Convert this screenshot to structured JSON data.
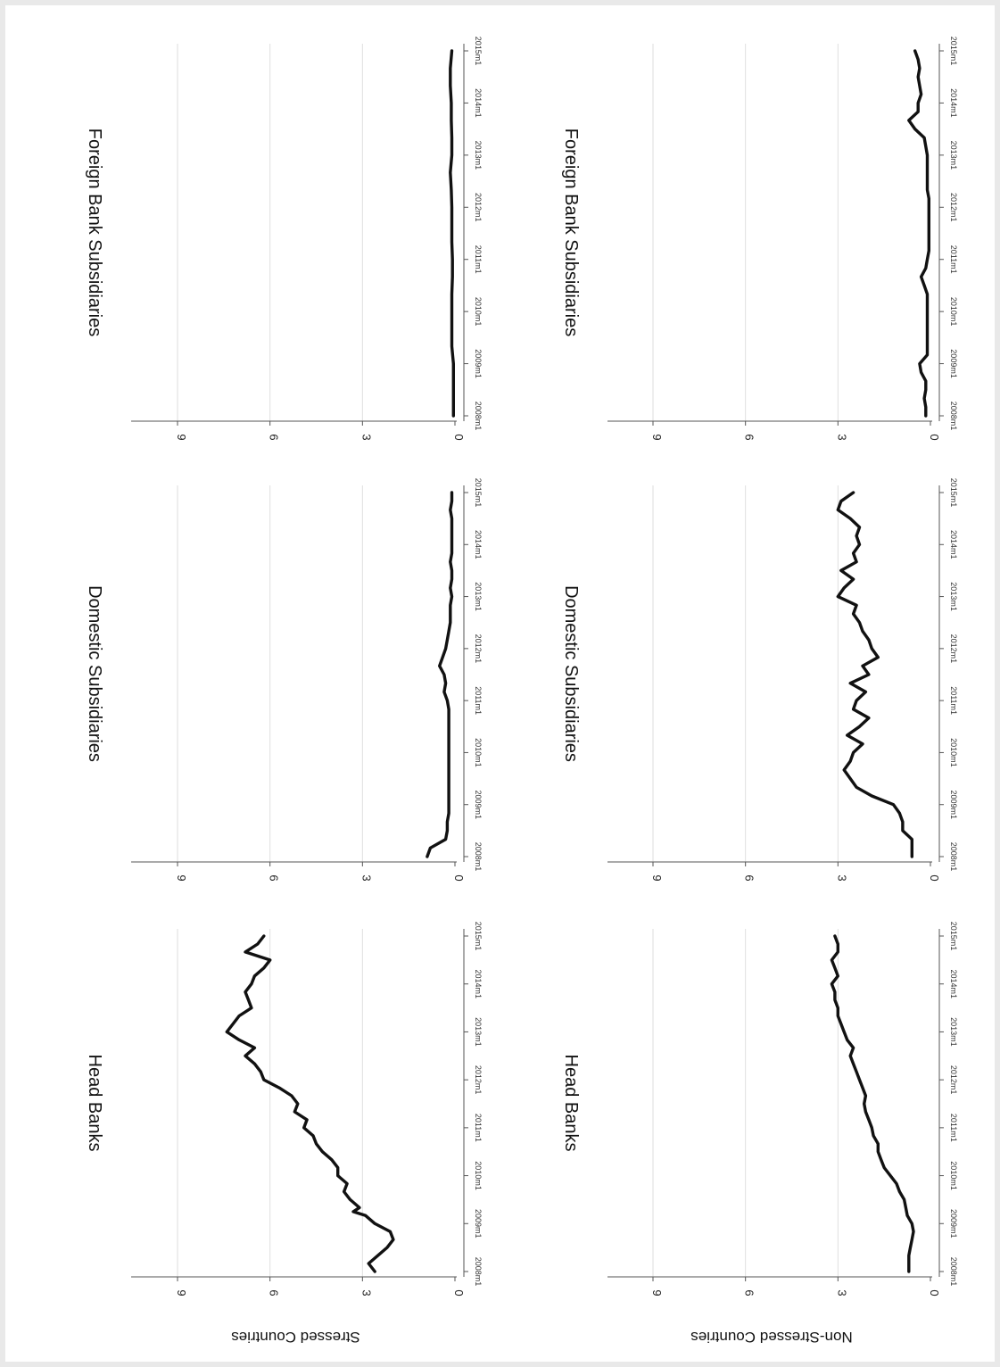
{
  "chart_data": [
    {
      "type": "line",
      "title": "Head Banks",
      "row_label": "Stressed Countries",
      "ylim": [
        0,
        7
      ],
      "yticks": [
        0,
        3,
        6,
        9
      ],
      "xticks": [
        "2008m1",
        "2009m1",
        "2010m1",
        "2011m1",
        "2012m1",
        "2013m1",
        "2014m1",
        "2015m1"
      ],
      "x_months": [
        0,
        2,
        4,
        6,
        8,
        10,
        12,
        14,
        15,
        16,
        18,
        20,
        22,
        24,
        26,
        28,
        30,
        32,
        34,
        36,
        38,
        40,
        42,
        44,
        46,
        48,
        50,
        52,
        54,
        56,
        58,
        60,
        62,
        64,
        66,
        68,
        70,
        72,
        74,
        76,
        78,
        80,
        82,
        84
      ],
      "values": [
        2.6,
        2.8,
        2.5,
        2.2,
        2.0,
        2.1,
        2.6,
        2.9,
        3.3,
        3.1,
        3.4,
        3.6,
        3.5,
        3.8,
        3.8,
        4.0,
        4.3,
        4.5,
        4.6,
        4.9,
        4.8,
        5.2,
        5.1,
        5.3,
        5.7,
        6.2,
        6.3,
        6.5,
        6.8,
        6.5,
        7.0,
        7.4,
        7.2,
        7.0,
        6.6,
        6.7,
        6.8,
        6.6,
        6.5,
        6.2,
        6.0,
        6.8,
        6.4,
        6.2
      ]
    },
    {
      "type": "line",
      "title": "Domestic Subsidiaries",
      "row_label": "",
      "ylim": [
        0,
        7
      ],
      "yticks": [
        0,
        3,
        6,
        9
      ],
      "xticks": [
        "2008m1",
        "2009m1",
        "2010m1",
        "2011m1",
        "2012m1",
        "2013m1",
        "2014m1",
        "2015m1"
      ],
      "x_months": [
        0,
        2,
        4,
        6,
        8,
        10,
        12,
        14,
        16,
        18,
        20,
        22,
        24,
        26,
        28,
        30,
        32,
        34,
        36,
        38,
        40,
        42,
        44,
        46,
        48,
        50,
        52,
        54,
        56,
        58,
        60,
        62,
        64,
        66,
        68,
        70,
        72,
        74,
        76,
        78,
        80,
        82,
        84
      ],
      "values": [
        0.9,
        0.8,
        0.3,
        0.25,
        0.25,
        0.2,
        0.2,
        0.2,
        0.2,
        0.2,
        0.2,
        0.2,
        0.2,
        0.2,
        0.2,
        0.2,
        0.2,
        0.2,
        0.25,
        0.35,
        0.3,
        0.35,
        0.5,
        0.4,
        0.3,
        0.25,
        0.2,
        0.15,
        0.15,
        0.15,
        0.1,
        0.15,
        0.1,
        0.1,
        0.15,
        0.1,
        0.1,
        0.1,
        0.1,
        0.1,
        0.15,
        0.1,
        0.1
      ]
    },
    {
      "type": "line",
      "title": "Foreign Bank Subsidiaries",
      "row_label": "",
      "ylim": [
        0,
        7
      ],
      "yticks": [
        0,
        3,
        6,
        9
      ],
      "xticks": [
        "2008m1",
        "2009m1",
        "2010m1",
        "2011m1",
        "2012m1",
        "2013m1",
        "2014m1",
        "2015m1"
      ],
      "x_months": [
        0,
        4,
        8,
        12,
        16,
        20,
        24,
        28,
        32,
        36,
        40,
        44,
        48,
        52,
        56,
        60,
        64,
        68,
        72,
        76,
        80,
        84
      ],
      "values": [
        0.05,
        0.05,
        0.05,
        0.05,
        0.1,
        0.1,
        0.1,
        0.1,
        0.08,
        0.08,
        0.1,
        0.1,
        0.1,
        0.12,
        0.15,
        0.1,
        0.1,
        0.12,
        0.12,
        0.15,
        0.15,
        0.1
      ]
    },
    {
      "type": "line",
      "title": "Head Banks",
      "row_label": "Non-Stressed Countries",
      "ylim": [
        0,
        7
      ],
      "yticks": [
        0,
        3,
        6,
        9
      ],
      "xticks": [
        "2008m1",
        "2009m1",
        "2010m1",
        "2011m1",
        "2012m1",
        "2013m1",
        "2014m1",
        "2015m1"
      ],
      "x_months": [
        0,
        2,
        4,
        6,
        8,
        10,
        12,
        14,
        16,
        18,
        20,
        22,
        24,
        26,
        28,
        30,
        32,
        34,
        36,
        38,
        40,
        42,
        44,
        46,
        48,
        50,
        52,
        54,
        56,
        58,
        60,
        62,
        64,
        66,
        68,
        70,
        72,
        74,
        76,
        78,
        80,
        82,
        84
      ],
      "values": [
        0.7,
        0.7,
        0.7,
        0.65,
        0.6,
        0.55,
        0.6,
        0.75,
        0.8,
        0.85,
        1.0,
        1.1,
        1.3,
        1.5,
        1.6,
        1.7,
        1.7,
        1.85,
        1.9,
        2.0,
        2.1,
        2.15,
        2.1,
        2.2,
        2.3,
        2.4,
        2.5,
        2.6,
        2.5,
        2.7,
        2.8,
        2.9,
        3.0,
        3.0,
        3.1,
        3.1,
        3.2,
        3.0,
        3.1,
        3.2,
        3.0,
        3.0,
        3.1
      ]
    },
    {
      "type": "line",
      "title": "Domestic Subsidiaries",
      "row_label": "",
      "ylim": [
        0,
        7
      ],
      "yticks": [
        0,
        3,
        6,
        9
      ],
      "xticks": [
        "2008m1",
        "2009m1",
        "2010m1",
        "2011m1",
        "2012m1",
        "2013m1",
        "2014m1",
        "2015m1"
      ],
      "x_months": [
        0,
        2,
        4,
        6,
        8,
        10,
        12,
        14,
        16,
        18,
        20,
        22,
        24,
        26,
        28,
        30,
        32,
        34,
        36,
        38,
        40,
        42,
        44,
        46,
        48,
        50,
        52,
        54,
        56,
        58,
        60,
        62,
        64,
        66,
        68,
        70,
        72,
        74,
        76,
        78,
        80,
        82,
        84
      ],
      "values": [
        0.6,
        0.6,
        0.6,
        0.9,
        0.9,
        1.0,
        1.2,
        1.9,
        2.4,
        2.6,
        2.8,
        2.6,
        2.5,
        2.2,
        2.7,
        2.3,
        2.0,
        2.5,
        2.4,
        2.1,
        2.6,
        2.0,
        2.2,
        1.7,
        1.9,
        2.0,
        2.2,
        2.3,
        2.5,
        2.4,
        3.0,
        2.8,
        2.5,
        2.9,
        2.4,
        2.5,
        2.3,
        2.4,
        2.3,
        2.6,
        3.0,
        2.9,
        2.5
      ]
    },
    {
      "type": "line",
      "title": "Foreign Bank Subsidiaries",
      "row_label": "",
      "ylim": [
        0,
        7
      ],
      "yticks": [
        0,
        3,
        6,
        9
      ],
      "xticks": [
        "2008m1",
        "2009m1",
        "2010m1",
        "2011m1",
        "2012m1",
        "2013m1",
        "2014m1",
        "2015m1"
      ],
      "x_months": [
        0,
        2,
        4,
        6,
        8,
        10,
        12,
        14,
        16,
        18,
        20,
        22,
        24,
        26,
        28,
        30,
        32,
        34,
        36,
        38,
        40,
        42,
        44,
        46,
        48,
        50,
        52,
        54,
        56,
        58,
        60,
        62,
        64,
        66,
        68,
        70,
        72,
        74,
        76,
        78,
        80,
        82,
        84
      ],
      "values": [
        0.15,
        0.15,
        0.2,
        0.15,
        0.15,
        0.3,
        0.35,
        0.1,
        0.1,
        0.1,
        0.1,
        0.1,
        0.1,
        0.1,
        0.1,
        0.2,
        0.3,
        0.15,
        0.1,
        0.05,
        0.05,
        0.05,
        0.05,
        0.05,
        0.05,
        0.05,
        0.1,
        0.1,
        0.1,
        0.1,
        0.1,
        0.15,
        0.2,
        0.5,
        0.7,
        0.4,
        0.4,
        0.3,
        0.35,
        0.4,
        0.35,
        0.4,
        0.5
      ]
    }
  ]
}
